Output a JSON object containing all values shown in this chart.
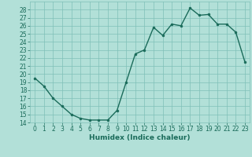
{
  "x": [
    0,
    1,
    2,
    3,
    4,
    5,
    6,
    7,
    8,
    9,
    10,
    11,
    12,
    13,
    14,
    15,
    16,
    17,
    18,
    19,
    20,
    21,
    22,
    23
  ],
  "y": [
    19.5,
    18.5,
    17.0,
    16.0,
    15.0,
    14.5,
    14.3,
    14.3,
    14.3,
    15.5,
    19.0,
    22.5,
    23.0,
    25.8,
    24.8,
    26.2,
    26.0,
    28.2,
    27.3,
    27.4,
    26.2,
    26.2,
    25.2,
    21.5
  ],
  "line_color": "#1a6b5a",
  "marker_color": "#1a6b5a",
  "bg_color": "#b2e0d8",
  "grid_color": "#7fbfb8",
  "xlabel": "Humidex (Indice chaleur)",
  "ylim": [
    14,
    29
  ],
  "xlim": [
    -0.5,
    23.5
  ],
  "yticks": [
    14,
    15,
    16,
    17,
    18,
    19,
    20,
    21,
    22,
    23,
    24,
    25,
    26,
    27,
    28
  ],
  "xticks": [
    0,
    1,
    2,
    3,
    4,
    5,
    6,
    7,
    8,
    9,
    10,
    11,
    12,
    13,
    14,
    15,
    16,
    17,
    18,
    19,
    20,
    21,
    22,
    23
  ],
  "title_color": "#1a6b5a",
  "tick_fontsize": 5.5,
  "xlabel_fontsize": 6.5,
  "line_width": 1.0,
  "marker_size": 2.0
}
